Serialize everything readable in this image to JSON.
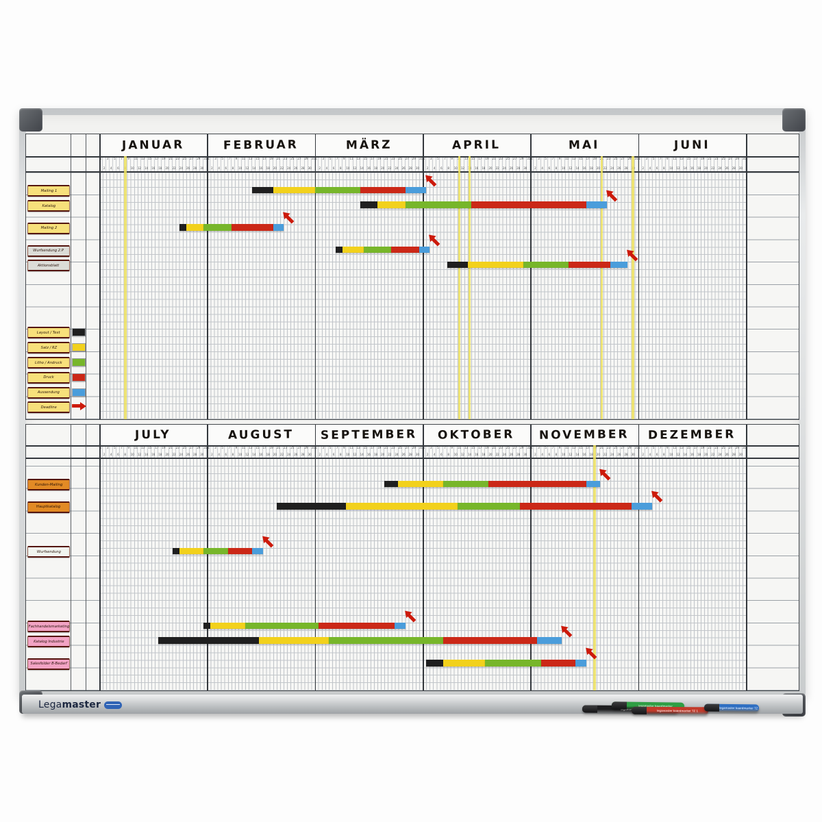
{
  "board": {
    "brand": {
      "lega": "Lega",
      "master": "master"
    },
    "pens": [
      {
        "name": "black-boardmarker",
        "body": "#1e1e20",
        "label": "legamaster boardmarker"
      },
      {
        "name": "green-boardmarker",
        "body": "#2f9e44",
        "label": "legamaster boardmarker"
      },
      {
        "name": "red-boardmarker",
        "body": "#c23a2a",
        "label": "legamaster boardmarker TZ 1"
      },
      {
        "name": "blue-boardmarker",
        "body": "#2f6fc2",
        "label": "legamaster boardmarker TZ 1"
      }
    ]
  },
  "chart_data": {
    "type": "gantt",
    "title": "Magnetic year planner board (two half-year Gantt panels)",
    "days_per_month": 31,
    "phase_colors": {
      "layout": "#1f1f1f",
      "satz": "#f2d11c",
      "litho": "#77b62a",
      "druck": "#cb2817",
      "aussendung": "#4a9ddb"
    },
    "plate_colors": {
      "yellow": "#f7e07b",
      "gray": "#dcdcd7",
      "orange": "#e28a25",
      "pink": "#f2a3c4",
      "white": "#f1f5ef"
    },
    "highlight_color": "#ece05e",
    "arrow_color": "#cc1a0b",
    "legend": [
      {
        "label": "Layout / Text",
        "phase": "layout",
        "row": 21
      },
      {
        "label": "Satz / RZ",
        "phase": "satz",
        "row": 23
      },
      {
        "label": "Litho / Andruck",
        "phase": "litho",
        "row": 25
      },
      {
        "label": "Druck",
        "phase": "druck",
        "row": 27
      },
      {
        "label": "Aussendung",
        "phase": "aussendung",
        "row": 29
      },
      {
        "label": "Deadline",
        "phase": "arrow",
        "row": 31
      }
    ],
    "halves": [
      {
        "months": [
          "JANUAR",
          "FEBRUAR",
          "MÄRZ",
          "APRIL",
          "MAI",
          "JUNI"
        ],
        "highlight_days": [
          8,
          104,
          107,
          145,
          154
        ],
        "show_legend": true,
        "rows": [
          {
            "label": "Mailing 1",
            "plate": "yellow",
            "row": 2,
            "segments": [
              {
                "phase": "layout",
                "start": 45,
                "end": 51
              },
              {
                "phase": "satz",
                "start": 51,
                "end": 63
              },
              {
                "phase": "litho",
                "start": 63,
                "end": 76
              },
              {
                "phase": "druck",
                "start": 76,
                "end": 89
              },
              {
                "phase": "aussendung",
                "start": 89,
                "end": 95
              }
            ],
            "deadline": 95
          },
          {
            "label": "Katalog",
            "plate": "yellow",
            "row": 4,
            "segments": [
              {
                "phase": "layout",
                "start": 76,
                "end": 81
              },
              {
                "phase": "satz",
                "start": 81,
                "end": 89
              },
              {
                "phase": "litho",
                "start": 89,
                "end": 108
              },
              {
                "phase": "druck",
                "start": 108,
                "end": 141
              },
              {
                "phase": "aussendung",
                "start": 141,
                "end": 147
              }
            ],
            "deadline": 147
          },
          {
            "label": "Mailing 2",
            "plate": "yellow",
            "row": 7,
            "segments": [
              {
                "phase": "layout",
                "start": 24,
                "end": 26
              },
              {
                "phase": "satz",
                "start": 26,
                "end": 31
              },
              {
                "phase": "litho",
                "start": 31,
                "end": 39
              },
              {
                "phase": "druck",
                "start": 39,
                "end": 51
              },
              {
                "phase": "aussendung",
                "start": 51,
                "end": 54
              }
            ],
            "deadline": 54
          },
          {
            "label": "Wurfsendung 2.P",
            "plate": "gray",
            "row": 10,
            "segments": [
              {
                "phase": "layout",
                "start": 69,
                "end": 71
              },
              {
                "phase": "satz",
                "start": 71,
                "end": 77
              },
              {
                "phase": "litho",
                "start": 77,
                "end": 85
              },
              {
                "phase": "druck",
                "start": 85,
                "end": 93
              },
              {
                "phase": "aussendung",
                "start": 93,
                "end": 96
              }
            ],
            "deadline": 96
          },
          {
            "label": "Aktionsblatt",
            "plate": "gray",
            "row": 12,
            "segments": [
              {
                "phase": "layout",
                "start": 101,
                "end": 107
              },
              {
                "phase": "satz",
                "start": 107,
                "end": 123
              },
              {
                "phase": "litho",
                "start": 123,
                "end": 136
              },
              {
                "phase": "druck",
                "start": 136,
                "end": 148
              },
              {
                "phase": "aussendung",
                "start": 148,
                "end": 153
              }
            ],
            "deadline": 153
          }
        ]
      },
      {
        "months": [
          "JULY",
          "AUGUST",
          "SEPTEMBER",
          "OKTOBER",
          "NOVEMBER",
          "DEZEMBER"
        ],
        "highlight_days": [
          143
        ],
        "show_legend": false,
        "rows": [
          {
            "label": "Kunden-Mailing",
            "plate": "orange",
            "row": 3,
            "segments": [
              {
                "phase": "layout",
                "start": 83,
                "end": 87
              },
              {
                "phase": "satz",
                "start": 87,
                "end": 100
              },
              {
                "phase": "litho",
                "start": 100,
                "end": 113
              },
              {
                "phase": "druck",
                "start": 113,
                "end": 141
              },
              {
                "phase": "aussendung",
                "start": 141,
                "end": 145
              }
            ],
            "deadline": 145
          },
          {
            "label": "Hauptkatalog",
            "plate": "orange",
            "row": 6,
            "segments": [
              {
                "phase": "layout",
                "start": 52,
                "end": 72
              },
              {
                "phase": "satz",
                "start": 72,
                "end": 104
              },
              {
                "phase": "litho",
                "start": 104,
                "end": 122
              },
              {
                "phase": "druck",
                "start": 122,
                "end": 154
              },
              {
                "phase": "aussendung",
                "start": 154,
                "end": 160
              }
            ],
            "deadline": 160
          },
          {
            "label": "Wurfsendung",
            "plate": "white",
            "row": 12,
            "segments": [
              {
                "phase": "layout",
                "start": 22,
                "end": 24
              },
              {
                "phase": "satz",
                "start": 24,
                "end": 31
              },
              {
                "phase": "litho",
                "start": 31,
                "end": 38
              },
              {
                "phase": "druck",
                "start": 38,
                "end": 45
              },
              {
                "phase": "aussendung",
                "start": 45,
                "end": 48
              }
            ],
            "deadline": 48
          },
          {
            "label": "Fachhandelsmarketing",
            "plate": "pink",
            "row": 22,
            "segments": [
              {
                "phase": "layout",
                "start": 31,
                "end": 33
              },
              {
                "phase": "satz",
                "start": 33,
                "end": 43
              },
              {
                "phase": "litho",
                "start": 43,
                "end": 64
              },
              {
                "phase": "druck",
                "start": 64,
                "end": 86
              },
              {
                "phase": "aussendung",
                "start": 86,
                "end": 89
              }
            ],
            "deadline": 89
          },
          {
            "label": "Katalog Industrie",
            "plate": "pink",
            "row": 24,
            "segments": [
              {
                "phase": "layout",
                "start": 18,
                "end": 47
              },
              {
                "phase": "satz",
                "start": 47,
                "end": 67
              },
              {
                "phase": "litho",
                "start": 67,
                "end": 100
              },
              {
                "phase": "druck",
                "start": 100,
                "end": 127
              },
              {
                "phase": "aussendung",
                "start": 127,
                "end": 134
              }
            ],
            "deadline": 134
          },
          {
            "label": "Salesfolder B-Bedarf",
            "plate": "pink",
            "row": 27,
            "segments": [
              {
                "phase": "layout",
                "start": 95,
                "end": 100
              },
              {
                "phase": "satz",
                "start": 100,
                "end": 112
              },
              {
                "phase": "litho",
                "start": 112,
                "end": 128
              },
              {
                "phase": "druck",
                "start": 128,
                "end": 138
              },
              {
                "phase": "aussendung",
                "start": 138,
                "end": 141
              }
            ],
            "deadline": 141
          }
        ]
      }
    ]
  }
}
